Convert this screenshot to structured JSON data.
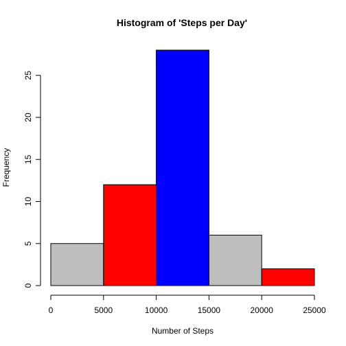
{
  "chart_data": {
    "type": "bar",
    "title": "Histogram of 'Steps per Day'",
    "xlabel": "Number of Steps",
    "ylabel": "Frequency",
    "bins": [
      {
        "from": 0,
        "to": 5000,
        "value": 5,
        "color": "#BEBEBE"
      },
      {
        "from": 5000,
        "to": 10000,
        "value": 12,
        "color": "#FF0000"
      },
      {
        "from": 10000,
        "to": 15000,
        "value": 28,
        "color": "#0000FF"
      },
      {
        "from": 15000,
        "to": 20000,
        "value": 6,
        "color": "#BEBEBE"
      },
      {
        "from": 20000,
        "to": 25000,
        "value": 2,
        "color": "#FF0000"
      }
    ],
    "values": [
      5,
      12,
      28,
      6,
      2
    ],
    "x_ticks": [
      0,
      5000,
      10000,
      15000,
      20000,
      25000
    ],
    "x_tick_labels": [
      "0",
      "5000",
      "10000",
      "15000",
      "20000",
      "25000"
    ],
    "y_ticks": [
      0,
      5,
      10,
      15,
      20,
      25
    ],
    "y_tick_labels": [
      "0",
      "5",
      "10",
      "15",
      "20",
      "25"
    ],
    "xlim": [
      0,
      25000
    ],
    "ylim": [
      0,
      28
    ],
    "grid": false,
    "legend": "none"
  }
}
